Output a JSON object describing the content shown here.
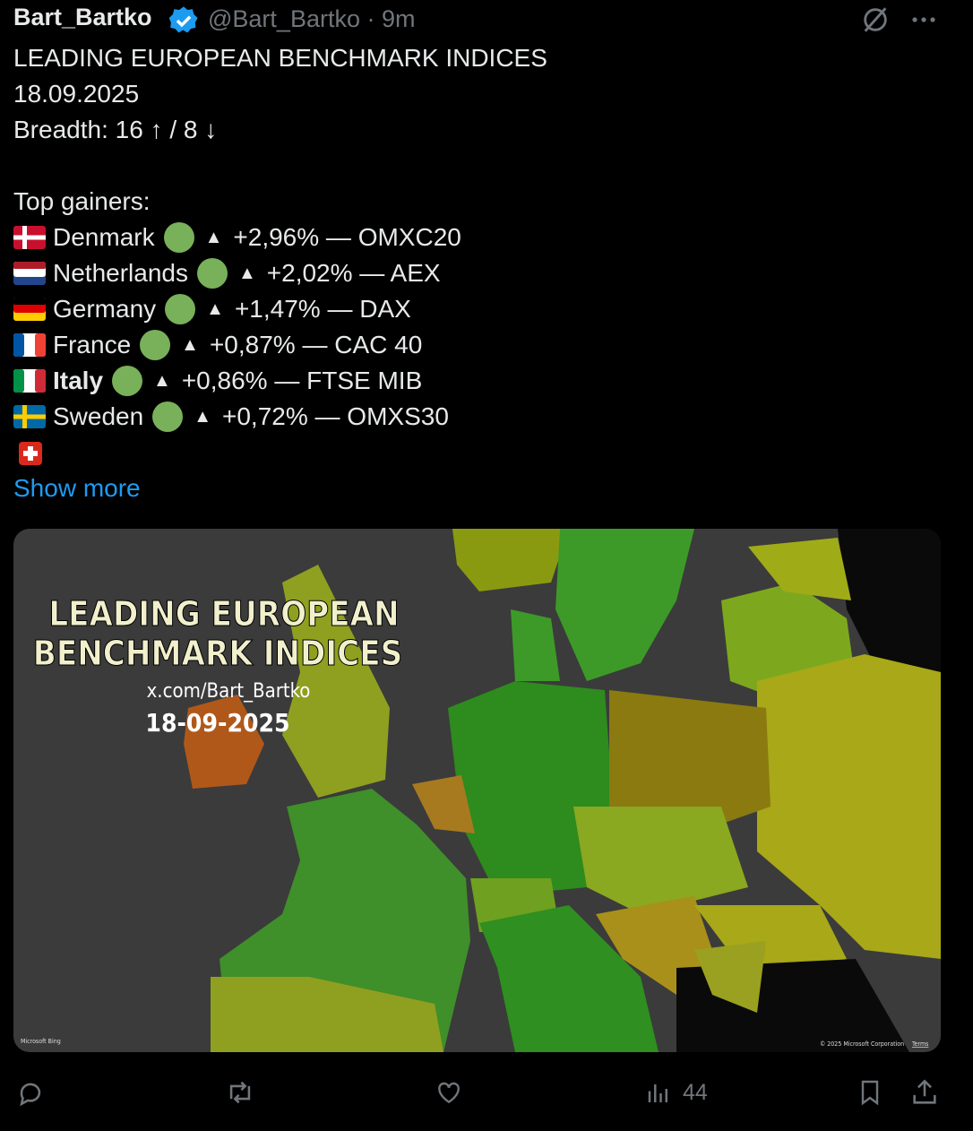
{
  "header": {
    "name": "Bart_Bartko",
    "meta": "@Bart_Bartko · 9m"
  },
  "text": {
    "lines": [
      "LEADING EUROPEAN BENCHMARK INDICES",
      "18.09.2025",
      "Breadth: 16 ↑ / 8 ↓"
    ],
    "gainers_heading": "Top gainers:",
    "gainers": [
      {
        "country": "Denmark",
        "detail": "+2,96% — OMXC20"
      },
      {
        "country": "Netherlands",
        "detail": "+2,02% — AEX"
      },
      {
        "country": "Germany",
        "detail": "+1,47% — DAX"
      },
      {
        "country": "France",
        "detail": "+0,87% — CAC 40"
      },
      {
        "country": "Italy",
        "detail": "+0,86% — FTSE MIB"
      },
      {
        "country": "Sweden",
        "detail": "+0,72% — OMXS30"
      }
    ],
    "show_more": "Show more"
  },
  "image": {
    "title_lines": [
      "LEADING EUROPEAN",
      "BENCHMARK INDICES"
    ],
    "source": "x.com/Bart_Bartko",
    "date": "18-09-2025",
    "credit_left": "Microsoft Bing",
    "credit_right": "© 2025 Microsoft Corporation",
    "terms": "Terms"
  },
  "actions": {
    "views": "44"
  }
}
